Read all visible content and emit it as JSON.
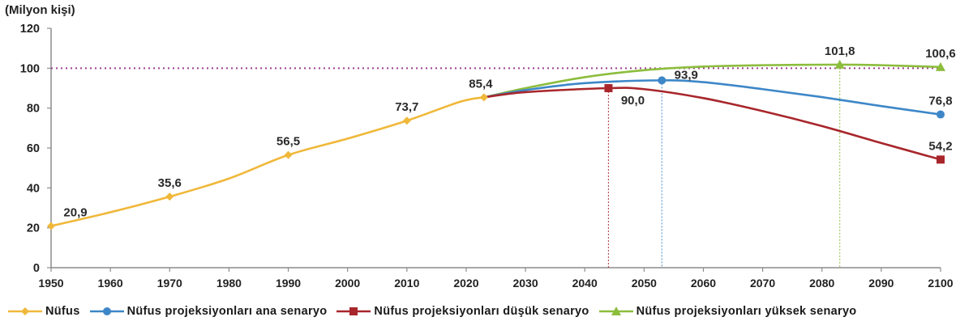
{
  "chart_data": {
    "type": "line",
    "title": "",
    "ylabel": "(Milyon kişi)",
    "xlabel": "",
    "ylim": [
      0,
      120
    ],
    "xlim": [
      1950,
      2100
    ],
    "yticks": [
      0,
      20,
      40,
      60,
      80,
      100,
      120
    ],
    "xticks": [
      1950,
      1960,
      1970,
      1980,
      1990,
      2000,
      2010,
      2020,
      2030,
      2040,
      2050,
      2060,
      2070,
      2080,
      2090,
      2100
    ],
    "grid": false,
    "legend_position": "bottom",
    "reference_line": {
      "y": 100,
      "style": "dotted",
      "color": "#9b3f8f"
    },
    "series": [
      {
        "name": "Nüfus",
        "color": "#f0b83a",
        "marker": "diamond",
        "points": [
          [
            1950,
            20.9
          ],
          [
            1960,
            27.8
          ],
          [
            1970,
            35.6
          ],
          [
            1980,
            44.7
          ],
          [
            1990,
            56.5
          ],
          [
            2000,
            64.7
          ],
          [
            2010,
            73.7
          ],
          [
            2019,
            83.2
          ],
          [
            2023,
            85.4
          ]
        ],
        "labeled": [
          {
            "x": 1950,
            "y": 20.9,
            "label": "20,9"
          },
          {
            "x": 1970,
            "y": 35.6,
            "label": "35,6"
          },
          {
            "x": 1990,
            "y": 56.5,
            "label": "56,5"
          },
          {
            "x": 2010,
            "y": 73.7,
            "label": "73,7"
          },
          {
            "x": 2023,
            "y": 85.4,
            "label": "85,4"
          }
        ]
      },
      {
        "name": "Nüfus projeksiyonları ana senaryo",
        "color": "#3d87c8",
        "marker": "circle",
        "points": [
          [
            2023,
            85.4
          ],
          [
            2030,
            89.0
          ],
          [
            2040,
            92.5
          ],
          [
            2053,
            93.9
          ],
          [
            2060,
            93.0
          ],
          [
            2070,
            89.5
          ],
          [
            2080,
            85.5
          ],
          [
            2090,
            81.0
          ],
          [
            2100,
            76.8
          ]
        ],
        "labeled": [
          {
            "x": 2053,
            "y": 93.9,
            "label": "93,9"
          },
          {
            "x": 2100,
            "y": 76.8,
            "label": "76,8"
          }
        ],
        "drop_line_x": 2053
      },
      {
        "name": "Nüfus projeksiyonları düşük senaryo",
        "color": "#a8262b",
        "marker": "square",
        "points": [
          [
            2023,
            85.4
          ],
          [
            2030,
            88.0
          ],
          [
            2044,
            90.0
          ],
          [
            2050,
            89.5
          ],
          [
            2060,
            85.0
          ],
          [
            2070,
            78.5
          ],
          [
            2080,
            71.0
          ],
          [
            2090,
            62.5
          ],
          [
            2100,
            54.2
          ]
        ],
        "labeled": [
          {
            "x": 2044,
            "y": 90.0,
            "label": "90,0"
          },
          {
            "x": 2100,
            "y": 54.2,
            "label": "54,2"
          }
        ],
        "drop_line_x": 2044
      },
      {
        "name": "Nüfus projeksiyonları yüksek senaryo",
        "color": "#8cbd3c",
        "marker": "triangle",
        "points": [
          [
            2023,
            85.4
          ],
          [
            2030,
            90.0
          ],
          [
            2040,
            95.5
          ],
          [
            2050,
            99.0
          ],
          [
            2060,
            100.8
          ],
          [
            2070,
            101.5
          ],
          [
            2083,
            101.8
          ],
          [
            2090,
            101.5
          ],
          [
            2100,
            100.6
          ]
        ],
        "labeled": [
          {
            "x": 2083,
            "y": 101.8,
            "label": "101,8"
          },
          {
            "x": 2100,
            "y": 100.6,
            "label": "100,6"
          }
        ],
        "drop_line_x": 2083
      }
    ]
  },
  "legend": {
    "items": [
      {
        "label": "Nüfus",
        "color": "#f0b83a",
        "marker": "diamond"
      },
      {
        "label": "Nüfus projeksiyonları ana senaryo",
        "color": "#3d87c8",
        "marker": "circle"
      },
      {
        "label": "Nüfus projeksiyonları düşük senaryo",
        "color": "#a8262b",
        "marker": "square"
      },
      {
        "label": "Nüfus projeksiyonları yüksek senaryo",
        "color": "#8cbd3c",
        "marker": "triangle"
      }
    ]
  }
}
